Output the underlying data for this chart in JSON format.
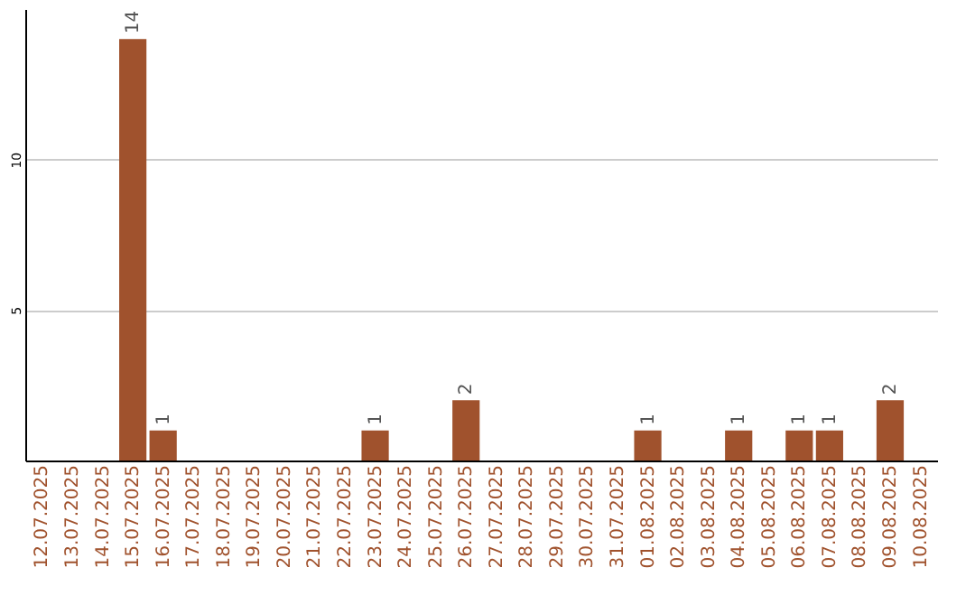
{
  "chart_data": {
    "type": "bar",
    "categories": [
      "12.07.2025",
      "13.07.2025",
      "14.07.2025",
      "15.07.2025",
      "16.07.2025",
      "17.07.2025",
      "18.07.2025",
      "19.07.2025",
      "20.07.2025",
      "21.07.2025",
      "22.07.2025",
      "23.07.2025",
      "24.07.2025",
      "25.07.2025",
      "26.07.2025",
      "27.07.2025",
      "28.07.2025",
      "29.07.2025",
      "30.07.2025",
      "31.07.2025",
      "01.08.2025",
      "02.08.2025",
      "03.08.2025",
      "04.08.2025",
      "05.08.2025",
      "06.08.2025",
      "07.08.2025",
      "08.08.2025",
      "09.08.2025",
      "10.08.2025"
    ],
    "values": [
      0,
      0,
      0,
      14,
      1,
      0,
      0,
      0,
      0,
      0,
      0,
      1,
      0,
      0,
      2,
      0,
      0,
      0,
      0,
      0,
      1,
      0,
      0,
      1,
      0,
      1,
      1,
      0,
      2,
      0
    ],
    "value_labels": [
      null,
      null,
      null,
      "14",
      "1",
      null,
      null,
      null,
      null,
      null,
      null,
      "1",
      null,
      null,
      "2",
      null,
      null,
      null,
      null,
      null,
      "1",
      null,
      null,
      "1",
      null,
      "1",
      "1",
      null,
      "2",
      null
    ],
    "color": "#a0522d",
    "ylim": [
      0,
      15
    ],
    "yticks": [
      5,
      10
    ],
    "grid": "y"
  }
}
